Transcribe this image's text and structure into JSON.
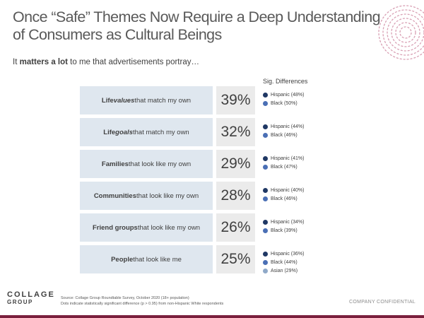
{
  "title": "Once “Safe” Themes Now Require a Deep Understanding of Consumers as Cultural Beings",
  "subtitle": {
    "prefix": "It ",
    "bold": "matters a lot",
    "suffix": " to me that advertisements portray…"
  },
  "sig_header": "Sig. Differences",
  "colors": {
    "hispanic": "#1f3864",
    "black": "#4a6fb5",
    "asian": "#8fa9c8",
    "label_bg": "#dfe7ef",
    "pct_bg": "#ebebeb",
    "accent": "#7a1f3d"
  },
  "rows": [
    {
      "label_bold": "Life ",
      "label_bold2": "values",
      "label_rest": " that match my own",
      "pct": "39%",
      "sig": [
        {
          "text": "Hispanic  (48%)"
        },
        {
          "text": "Black (50%)"
        }
      ]
    },
    {
      "label_bold": "Life ",
      "label_bold2": "goals",
      "label_rest": " that match my own",
      "pct": "32%",
      "sig": [
        {
          "text": "Hispanic  (44%)"
        },
        {
          "text": "Black (46%)"
        }
      ]
    },
    {
      "label_bold": "Families",
      "label_bold2": "",
      "label_rest": " that look like my own",
      "pct": "29%",
      "sig": [
        {
          "text": "Hispanic  (41%)"
        },
        {
          "text": "Black (47%)"
        }
      ]
    },
    {
      "label_bold": "Communities",
      "label_bold2": "",
      "label_rest": " that look like my own",
      "pct": "28%",
      "sig": [
        {
          "text": "Hispanic  (40%)"
        },
        {
          "text": "Black (46%)"
        }
      ]
    },
    {
      "label_bold": "Friend groups",
      "label_bold2": "",
      "label_rest": " that look like my own",
      "pct": "26%",
      "sig": [
        {
          "text": "Hispanic  (34%)"
        },
        {
          "text": "Black (39%)"
        }
      ]
    },
    {
      "label_bold": "People",
      "label_bold2": "",
      "label_rest": " that look like me",
      "pct": "25%",
      "sig": [
        {
          "text": "Hispanic  (36%)"
        },
        {
          "text": "Black (44%)"
        },
        {
          "text": "Asian (29%)"
        }
      ]
    }
  ],
  "logo": {
    "line1": "COLLAGE",
    "line2": "GROUP"
  },
  "footnote": {
    "line1": "Source: Collage Group Roundtable Survey, October 2020 (18+ population)",
    "line2": "Dots indicate statistically significant difference (p > 0.95) from non-Hispanic White respondents"
  },
  "confidential": "COMPANY CONFIDENTIAL"
}
